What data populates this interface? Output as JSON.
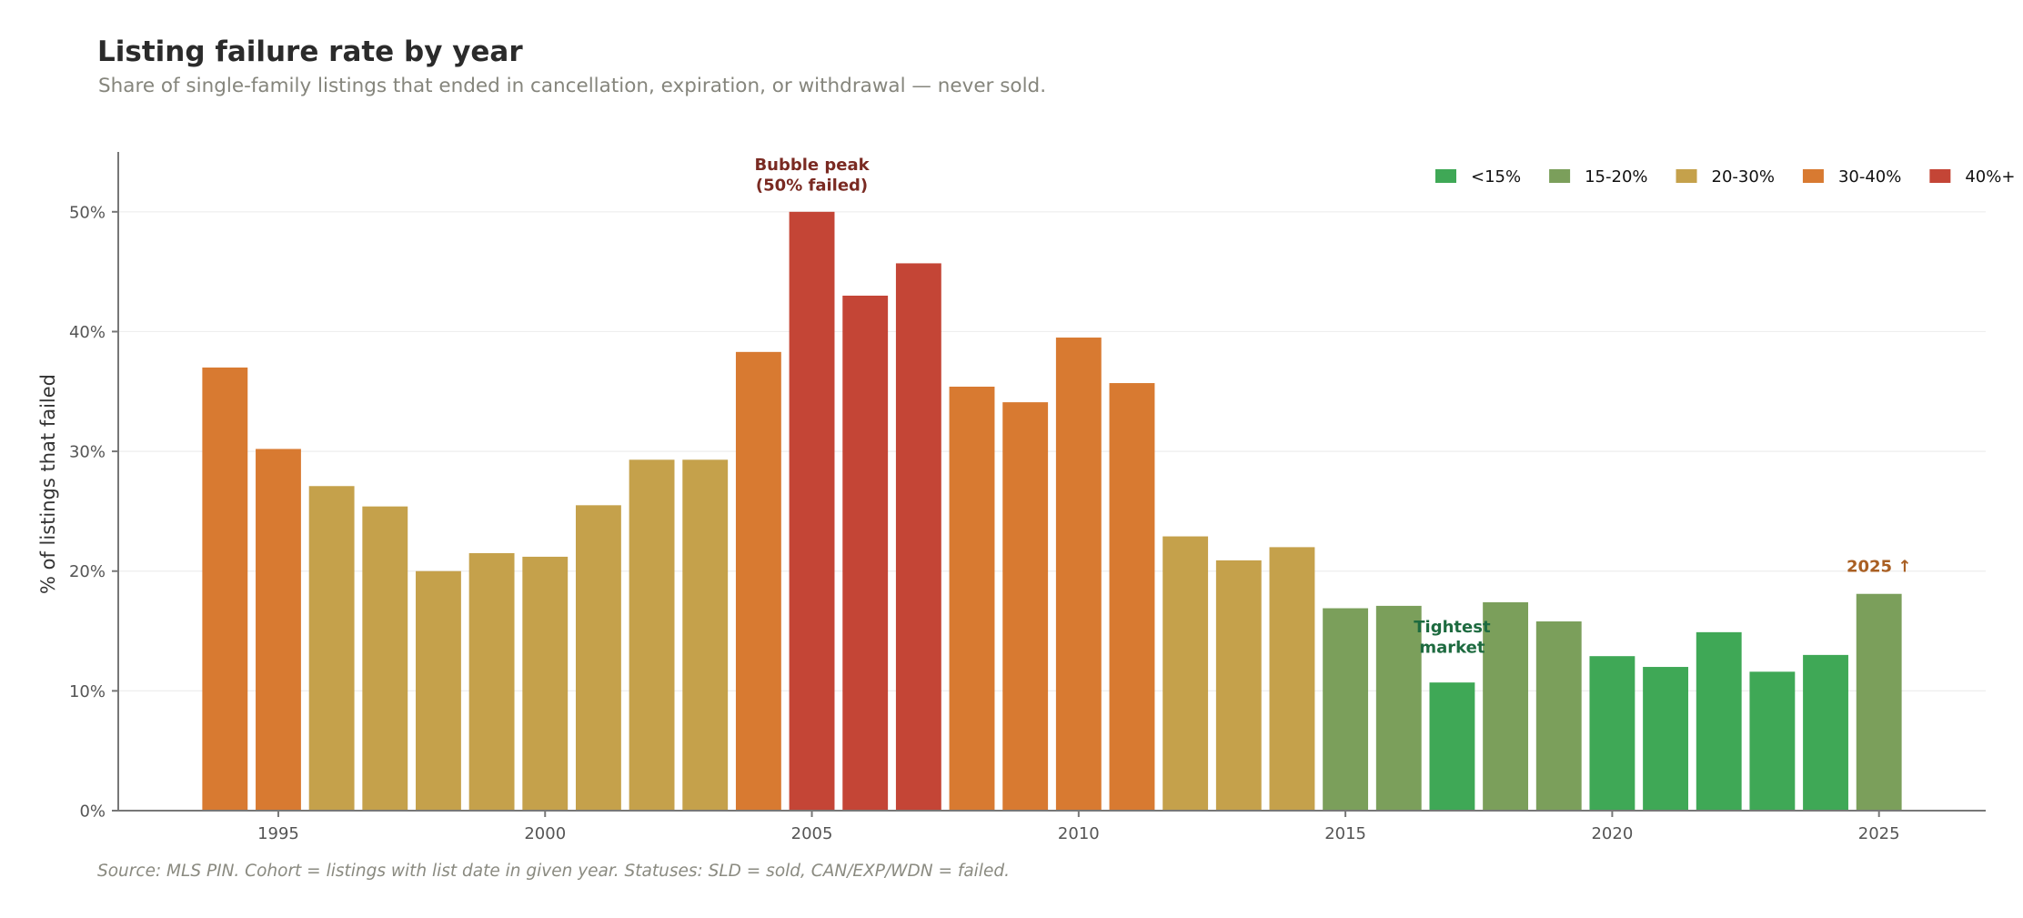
{
  "chart_data": {
    "type": "bar",
    "title": "Listing failure rate by year",
    "subtitle": "Share of single-family listings that ended in cancellation, expiration, or withdrawal — never sold.",
    "xlabel": "",
    "ylabel": "% of listings that failed",
    "xlim": [
      1992,
      2027
    ],
    "ylim": [
      0,
      55
    ],
    "x_ticks": [
      1995,
      2000,
      2005,
      2010,
      2015,
      2020,
      2025
    ],
    "y_ticks": [
      0,
      10,
      20,
      30,
      40,
      50
    ],
    "y_tick_format": "{v}%",
    "grid": "y",
    "legend_position": "top-right",
    "categories": [
      1994,
      1995,
      1996,
      1997,
      1998,
      1999,
      2000,
      2001,
      2002,
      2003,
      2004,
      2005,
      2006,
      2007,
      2008,
      2009,
      2010,
      2011,
      2012,
      2013,
      2014,
      2015,
      2016,
      2017,
      2018,
      2019,
      2020,
      2021,
      2022,
      2023,
      2024,
      2025
    ],
    "values": [
      37.0,
      30.2,
      27.1,
      25.4,
      20.0,
      21.5,
      21.2,
      25.5,
      29.3,
      29.3,
      38.3,
      50.0,
      43.0,
      45.7,
      35.4,
      34.1,
      39.5,
      35.7,
      22.9,
      20.9,
      22.0,
      16.9,
      17.1,
      10.7,
      17.4,
      15.8,
      12.9,
      12.0,
      14.9,
      11.6,
      13.0,
      18.1
    ],
    "color_bins": [
      {
        "label": "<15%",
        "min": 0,
        "max": 15,
        "color": "#3fa856"
      },
      {
        "label": "15-20%",
        "min": 15,
        "max": 20,
        "color": "#7b9f5b"
      },
      {
        "label": "20-30%",
        "min": 20,
        "max": 30,
        "color": "#c5a14b"
      },
      {
        "label": "30-40%",
        "min": 30,
        "max": 40,
        "color": "#d87a31"
      },
      {
        "label": "40%+",
        "min": 40,
        "max": 1000,
        "color": "#c44536"
      }
    ],
    "annotations": [
      {
        "id": "bubble-peak",
        "lines": [
          "Bubble peak",
          "(50% failed)"
        ],
        "x": 2005,
        "y": 50,
        "color": "#7a2a22"
      },
      {
        "id": "tightest-market",
        "lines": [
          "Tightest",
          "market"
        ],
        "x": 2017,
        "y": 10.7,
        "color": "#1e6b40"
      },
      {
        "id": "year-2025",
        "lines": [
          "2025 ↑"
        ],
        "x": 2025,
        "y": 18.1,
        "color": "#a95f23"
      }
    ],
    "footer": "Source: MLS PIN. Cohort = listings with list date in given year. Statuses: SLD = sold, CAN/EXP/WDN = failed."
  }
}
